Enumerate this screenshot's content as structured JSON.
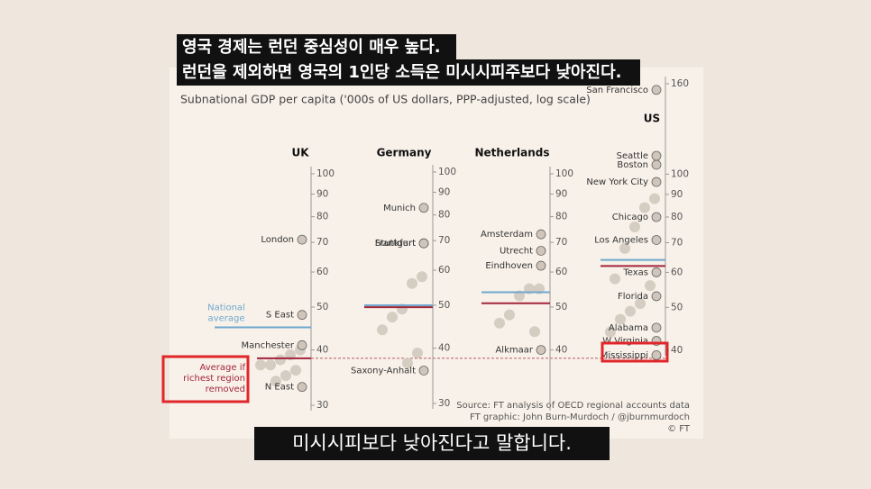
{
  "subtitles": {
    "top": [
      "영국 경제는 런던 중심성이 매우 높다.",
      "런던을 제외하면 영국의 1인당 소득은 미시시피주보다 낮아진다."
    ],
    "bottom": "미시시피보다 낮아진다고 말합니다."
  },
  "figure": {
    "title": "Subnational GDP per capita ('000s of US dollars, PPP-adjusted, log scale)",
    "source": [
      "Source: FT analysis of OECD regional accounts data",
      "FT graphic: John Burn-Murdoch / @jburnmurdoch",
      "© FT"
    ]
  },
  "chart_data": [
    {
      "type": "strip",
      "title": "UK",
      "log_scale": true,
      "ylim": [
        30,
        100
      ],
      "yticks": [
        30,
        40,
        50,
        60,
        70,
        80,
        90,
        100
      ],
      "dot_color": "#cfc5bb",
      "national_average": 45,
      "national_average_color": "#6ea8cf",
      "removed_average": 38.3,
      "removed_average_color": "#a3253a",
      "national_average_label": [
        "National",
        "average"
      ],
      "removed_average_label": [
        "Average if",
        "richest region",
        "removed"
      ],
      "categories": [
        "London",
        "S East",
        "Manchester",
        "N East",
        null,
        null,
        null,
        null,
        null,
        null,
        null,
        null
      ],
      "values": [
        71,
        48,
        41,
        33,
        40,
        39,
        38,
        37,
        37,
        36,
        35,
        34
      ]
    },
    {
      "type": "strip",
      "title": "Germany",
      "log_scale": true,
      "ylim": [
        30,
        100
      ],
      "yticks": [
        30,
        40,
        50,
        60,
        70,
        80,
        90,
        100
      ],
      "dot_color": "#cfc5bb",
      "national_average": 50,
      "national_average_color": "#6ea8cf",
      "removed_average": 49.5,
      "removed_average_color": "#a3253a",
      "categories": [
        "Munich",
        "Stuttgart",
        "Frankfurt",
        "Saxony-Anhalt",
        null,
        null,
        null,
        null,
        null,
        null,
        null
      ],
      "values": [
        83,
        69,
        69,
        35.6,
        58,
        56,
        49,
        47,
        44,
        39,
        37
      ]
    },
    {
      "type": "strip",
      "title": "Netherlands",
      "log_scale": true,
      "ylim": [
        30,
        100
      ],
      "yticks": [
        40,
        50,
        60,
        70,
        80,
        90,
        100
      ],
      "dot_color": "#cfc5bb",
      "national_average": 54,
      "national_average_color": "#6ea8cf",
      "removed_average": 51,
      "removed_average_color": "#a3253a",
      "categories": [
        "Amsterdam",
        "Utrecht",
        "Eindhoven",
        "Alkmaar",
        null,
        null,
        null,
        null,
        null,
        null
      ],
      "values": [
        73,
        67,
        62,
        40,
        55,
        55,
        53,
        48,
        46,
        44
      ]
    },
    {
      "type": "strip",
      "title": "US",
      "log_scale": true,
      "ylim": [
        40,
        160
      ],
      "yticks": [
        40,
        50,
        60,
        70,
        80,
        90,
        100,
        160
      ],
      "dot_color": "#cfc5bb",
      "national_average": 64,
      "national_average_color": "#6ea8cf",
      "removed_average": 62,
      "removed_average_color": "#a3253a",
      "categories": [
        "San Francisco",
        "Seattle",
        "Boston",
        "New York City",
        "Chicago",
        "Los Angeles",
        "Texas",
        "Florida",
        "Alabama",
        "W Virginia",
        "Mississippi",
        null,
        null,
        null,
        null,
        null,
        null,
        null,
        null,
        null,
        null
      ],
      "values": [
        155,
        110,
        105,
        96,
        80,
        71,
        60,
        53,
        45,
        42,
        39,
        88,
        84,
        76,
        68,
        58,
        56,
        51,
        49,
        47,
        44
      ]
    }
  ]
}
